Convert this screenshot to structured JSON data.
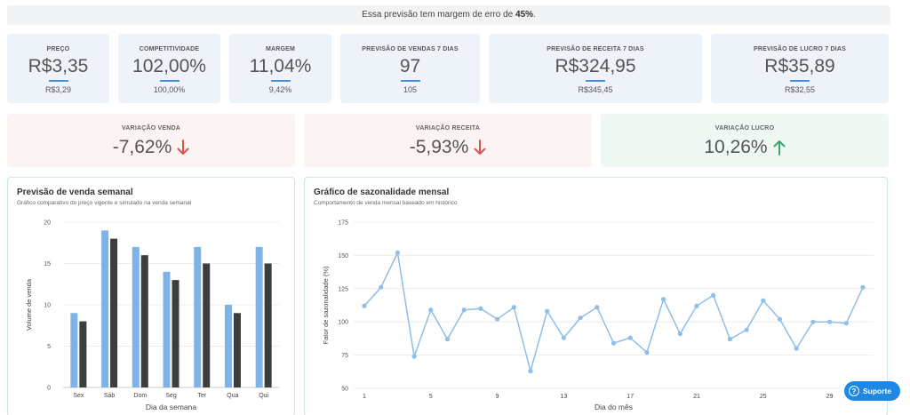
{
  "banner": {
    "prefix": "Essa previsão tem margem de erro de ",
    "value": "45%",
    "suffix": "."
  },
  "kpis": [
    {
      "label": "PREÇO",
      "value": "R$3,35",
      "sub": "R$3,29"
    },
    {
      "label": "COMPETITIVIDADE",
      "value": "102,00%",
      "sub": "100,00%"
    },
    {
      "label": "MARGEM",
      "value": "11,04%",
      "sub": "9,42%"
    },
    {
      "label": "PREVISÃO DE VENDAS 7 DIAS",
      "value": "97",
      "sub": "105"
    },
    {
      "label": "PREVISÃO DE RECEITA 7 DIAS",
      "value": "R$324,95",
      "sub": "R$345,45"
    },
    {
      "label": "PREVISÃO DE LUCRO 7 DIAS",
      "value": "R$35,89",
      "sub": "R$32,55"
    }
  ],
  "variations": [
    {
      "label": "VARIAÇÃO VENDA",
      "value": "-7,62%",
      "direction": "down",
      "bg": "#fcf3f3",
      "arrow_color": "#d9534f"
    },
    {
      "label": "VARIAÇÃO RECEITA",
      "value": "-5,93%",
      "direction": "down",
      "bg": "#fcf3f3",
      "arrow_color": "#d9534f"
    },
    {
      "label": "VARIAÇÃO LUCRO",
      "value": "10,26%",
      "direction": "up",
      "bg": "#f0f8f3",
      "arrow_color": "#3aa76d"
    }
  ],
  "weekly_panel": {
    "title": "Previsão de venda semanal",
    "description": "Gráfico comparativo do preço vigente e simulado na venda semanal"
  },
  "monthly_panel": {
    "title": "Gráfico de sazonalidade mensal",
    "description": "Comportamento de venda mensal baseado em histórico"
  },
  "support_button": {
    "label": "Suporte",
    "icon": "help-circle-icon"
  },
  "colors": {
    "series_a": "#7fb3e8",
    "series_b": "#3d3d3f",
    "line": "#8fbfe6",
    "accent": "#4a90d9"
  },
  "chart_data": [
    {
      "type": "bar",
      "categories": [
        "Sex",
        "Sáb",
        "Dom",
        "Seg",
        "Ter",
        "Qua",
        "Qui"
      ],
      "series": [
        {
          "values": [
            9,
            19,
            17,
            14,
            17,
            10,
            17
          ]
        },
        {
          "values": [
            8,
            18,
            16,
            13,
            15,
            9,
            15
          ]
        }
      ],
      "xlabel": "Dia da semana",
      "ylabel": "Volume de venda",
      "ylim": [
        0,
        20
      ],
      "yticks": [
        0,
        5,
        10,
        15,
        20
      ],
      "grid": true
    },
    {
      "type": "line",
      "x": [
        1,
        2,
        3,
        4,
        5,
        6,
        7,
        8,
        9,
        10,
        11,
        12,
        13,
        14,
        15,
        16,
        17,
        18,
        19,
        20,
        21,
        22,
        23,
        24,
        25,
        26,
        27,
        28,
        29,
        30,
        31
      ],
      "y": [
        112,
        126,
        152,
        74,
        109,
        87,
        109,
        110,
        102,
        111,
        63,
        108,
        88,
        103,
        111,
        84,
        88,
        77,
        117,
        91,
        112,
        120,
        87,
        94,
        116,
        102,
        80,
        100,
        100,
        99,
        126
      ],
      "xlabel": "Dia do mês",
      "ylabel": "Fator de sazonalidade (%)",
      "ylim": [
        50,
        175
      ],
      "yticks": [
        50,
        75,
        100,
        125,
        150,
        175
      ],
      "xticks": [
        1,
        5,
        9,
        13,
        17,
        21,
        25,
        29
      ],
      "grid": true
    }
  ]
}
